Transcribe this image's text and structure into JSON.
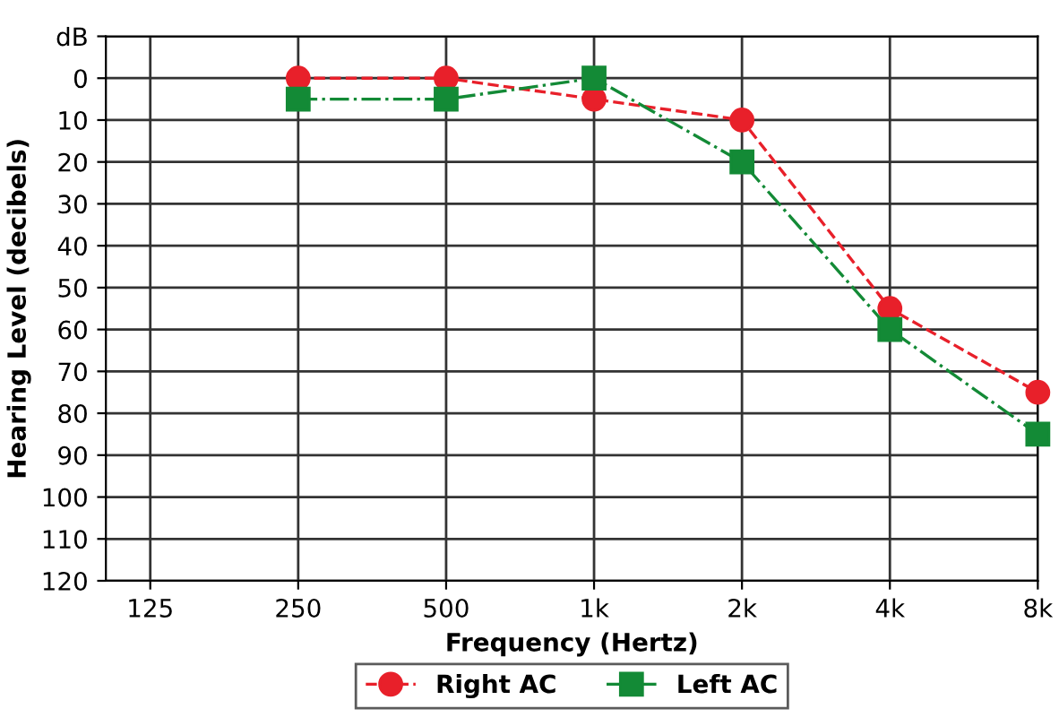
{
  "chart_data": {
    "type": "line",
    "xlabel": "Frequency (Hertz)",
    "ylabel": "Hearing Level (decibels)",
    "categories": [
      "125",
      "250",
      "500",
      "1k",
      "2k",
      "4k",
      "8k"
    ],
    "series": [
      {
        "name": "Right AC",
        "color": "#e8202a",
        "values": [
          null,
          0,
          0,
          5,
          10,
          55,
          75
        ],
        "marker": "circle",
        "line_style": "dashed"
      },
      {
        "name": "Left AC",
        "color": "#138a36",
        "values": [
          null,
          5,
          5,
          0,
          20,
          60,
          85
        ],
        "marker": "square",
        "line_style": "dashdot"
      }
    ],
    "ylim": [
      120,
      -10
    ],
    "yticks": [
      {
        "value": -10,
        "label": "dB"
      },
      0,
      10,
      20,
      30,
      40,
      50,
      60,
      70,
      80,
      90,
      100,
      110,
      120
    ],
    "grid": true,
    "legend": "bottom"
  }
}
